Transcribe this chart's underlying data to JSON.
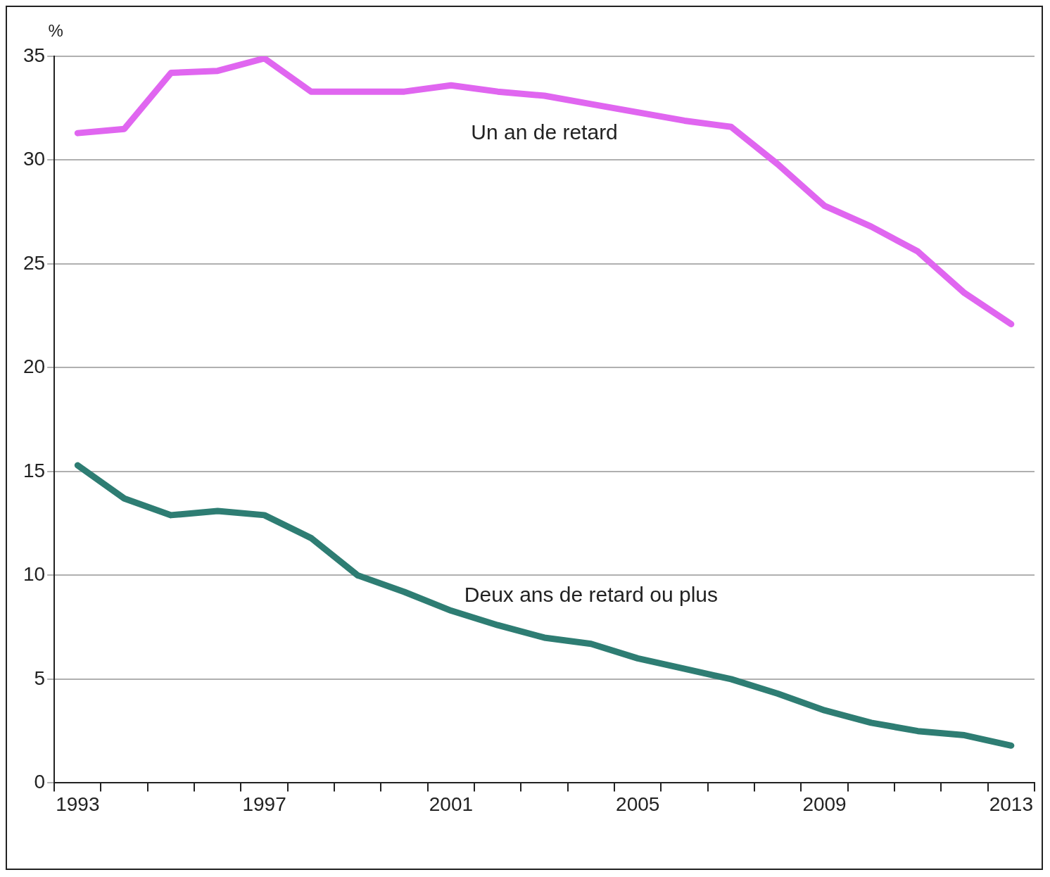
{
  "chart_data": {
    "type": "line",
    "ylabel": "%",
    "categories": [
      "1993",
      null,
      null,
      null,
      "1997",
      null,
      null,
      null,
      "2001",
      null,
      null,
      null,
      "2005",
      null,
      null,
      null,
      "2009",
      null,
      null,
      null,
      "2013"
    ],
    "series": [
      {
        "name": "Un an de retard",
        "color": "#e066f0",
        "values": [
          31.3,
          31.5,
          34.2,
          34.3,
          34.9,
          33.3,
          33.3,
          33.3,
          33.6,
          33.3,
          33.1,
          32.7,
          32.3,
          31.9,
          31.6,
          29.8,
          27.8,
          26.8,
          25.6,
          23.6,
          22.1
        ]
      },
      {
        "name": "Deux ans de retard ou plus",
        "color": "#2e7d73",
        "values": [
          15.3,
          13.7,
          12.9,
          13.1,
          12.9,
          11.8,
          10.0,
          9.2,
          8.3,
          7.6,
          7.0,
          6.7,
          6.0,
          5.5,
          5.0,
          4.3,
          3.5,
          2.9,
          2.5,
          2.3,
          1.8
        ]
      }
    ],
    "ylim": [
      0,
      35
    ],
    "yticks": [
      0,
      5,
      10,
      15,
      20,
      25,
      30,
      35
    ],
    "grid": "y",
    "legend": false,
    "marker": "none",
    "line_style": "solid"
  }
}
